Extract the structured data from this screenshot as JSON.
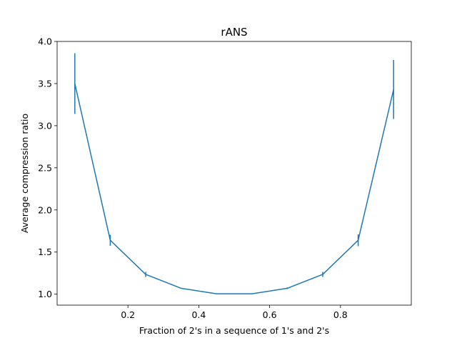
{
  "chart_data": {
    "type": "line",
    "title": "rANS",
    "xlabel": "Fraction of 2's in a sequence of 1's and 2's",
    "ylabel": "Average compression ratio",
    "xlim": [
      0.0,
      1.0
    ],
    "ylim": [
      0.87,
      4.0
    ],
    "xticks": [
      0.2,
      0.4,
      0.6,
      0.8
    ],
    "xtick_labels": [
      "0.2",
      "0.4",
      "0.6",
      "0.8"
    ],
    "yticks": [
      1.0,
      1.5,
      2.0,
      2.5,
      3.0,
      3.5,
      4.0
    ],
    "ytick_labels": [
      "1.0",
      "1.5",
      "2.0",
      "2.5",
      "3.0",
      "3.5",
      "4.0"
    ],
    "grid": false,
    "color": "#1f77b4",
    "series": [
      {
        "x": [
          0.05,
          0.15,
          0.25,
          0.35,
          0.45,
          0.55,
          0.65,
          0.75,
          0.85,
          0.95
        ],
        "y": [
          3.5,
          1.64,
          1.235,
          1.07,
          1.005,
          1.005,
          1.07,
          1.235,
          1.64,
          3.43
        ],
        "yerr": [
          0.36,
          0.065,
          0.03,
          0.005,
          0.003,
          0.003,
          0.01,
          0.03,
          0.07,
          0.35
        ]
      }
    ]
  }
}
